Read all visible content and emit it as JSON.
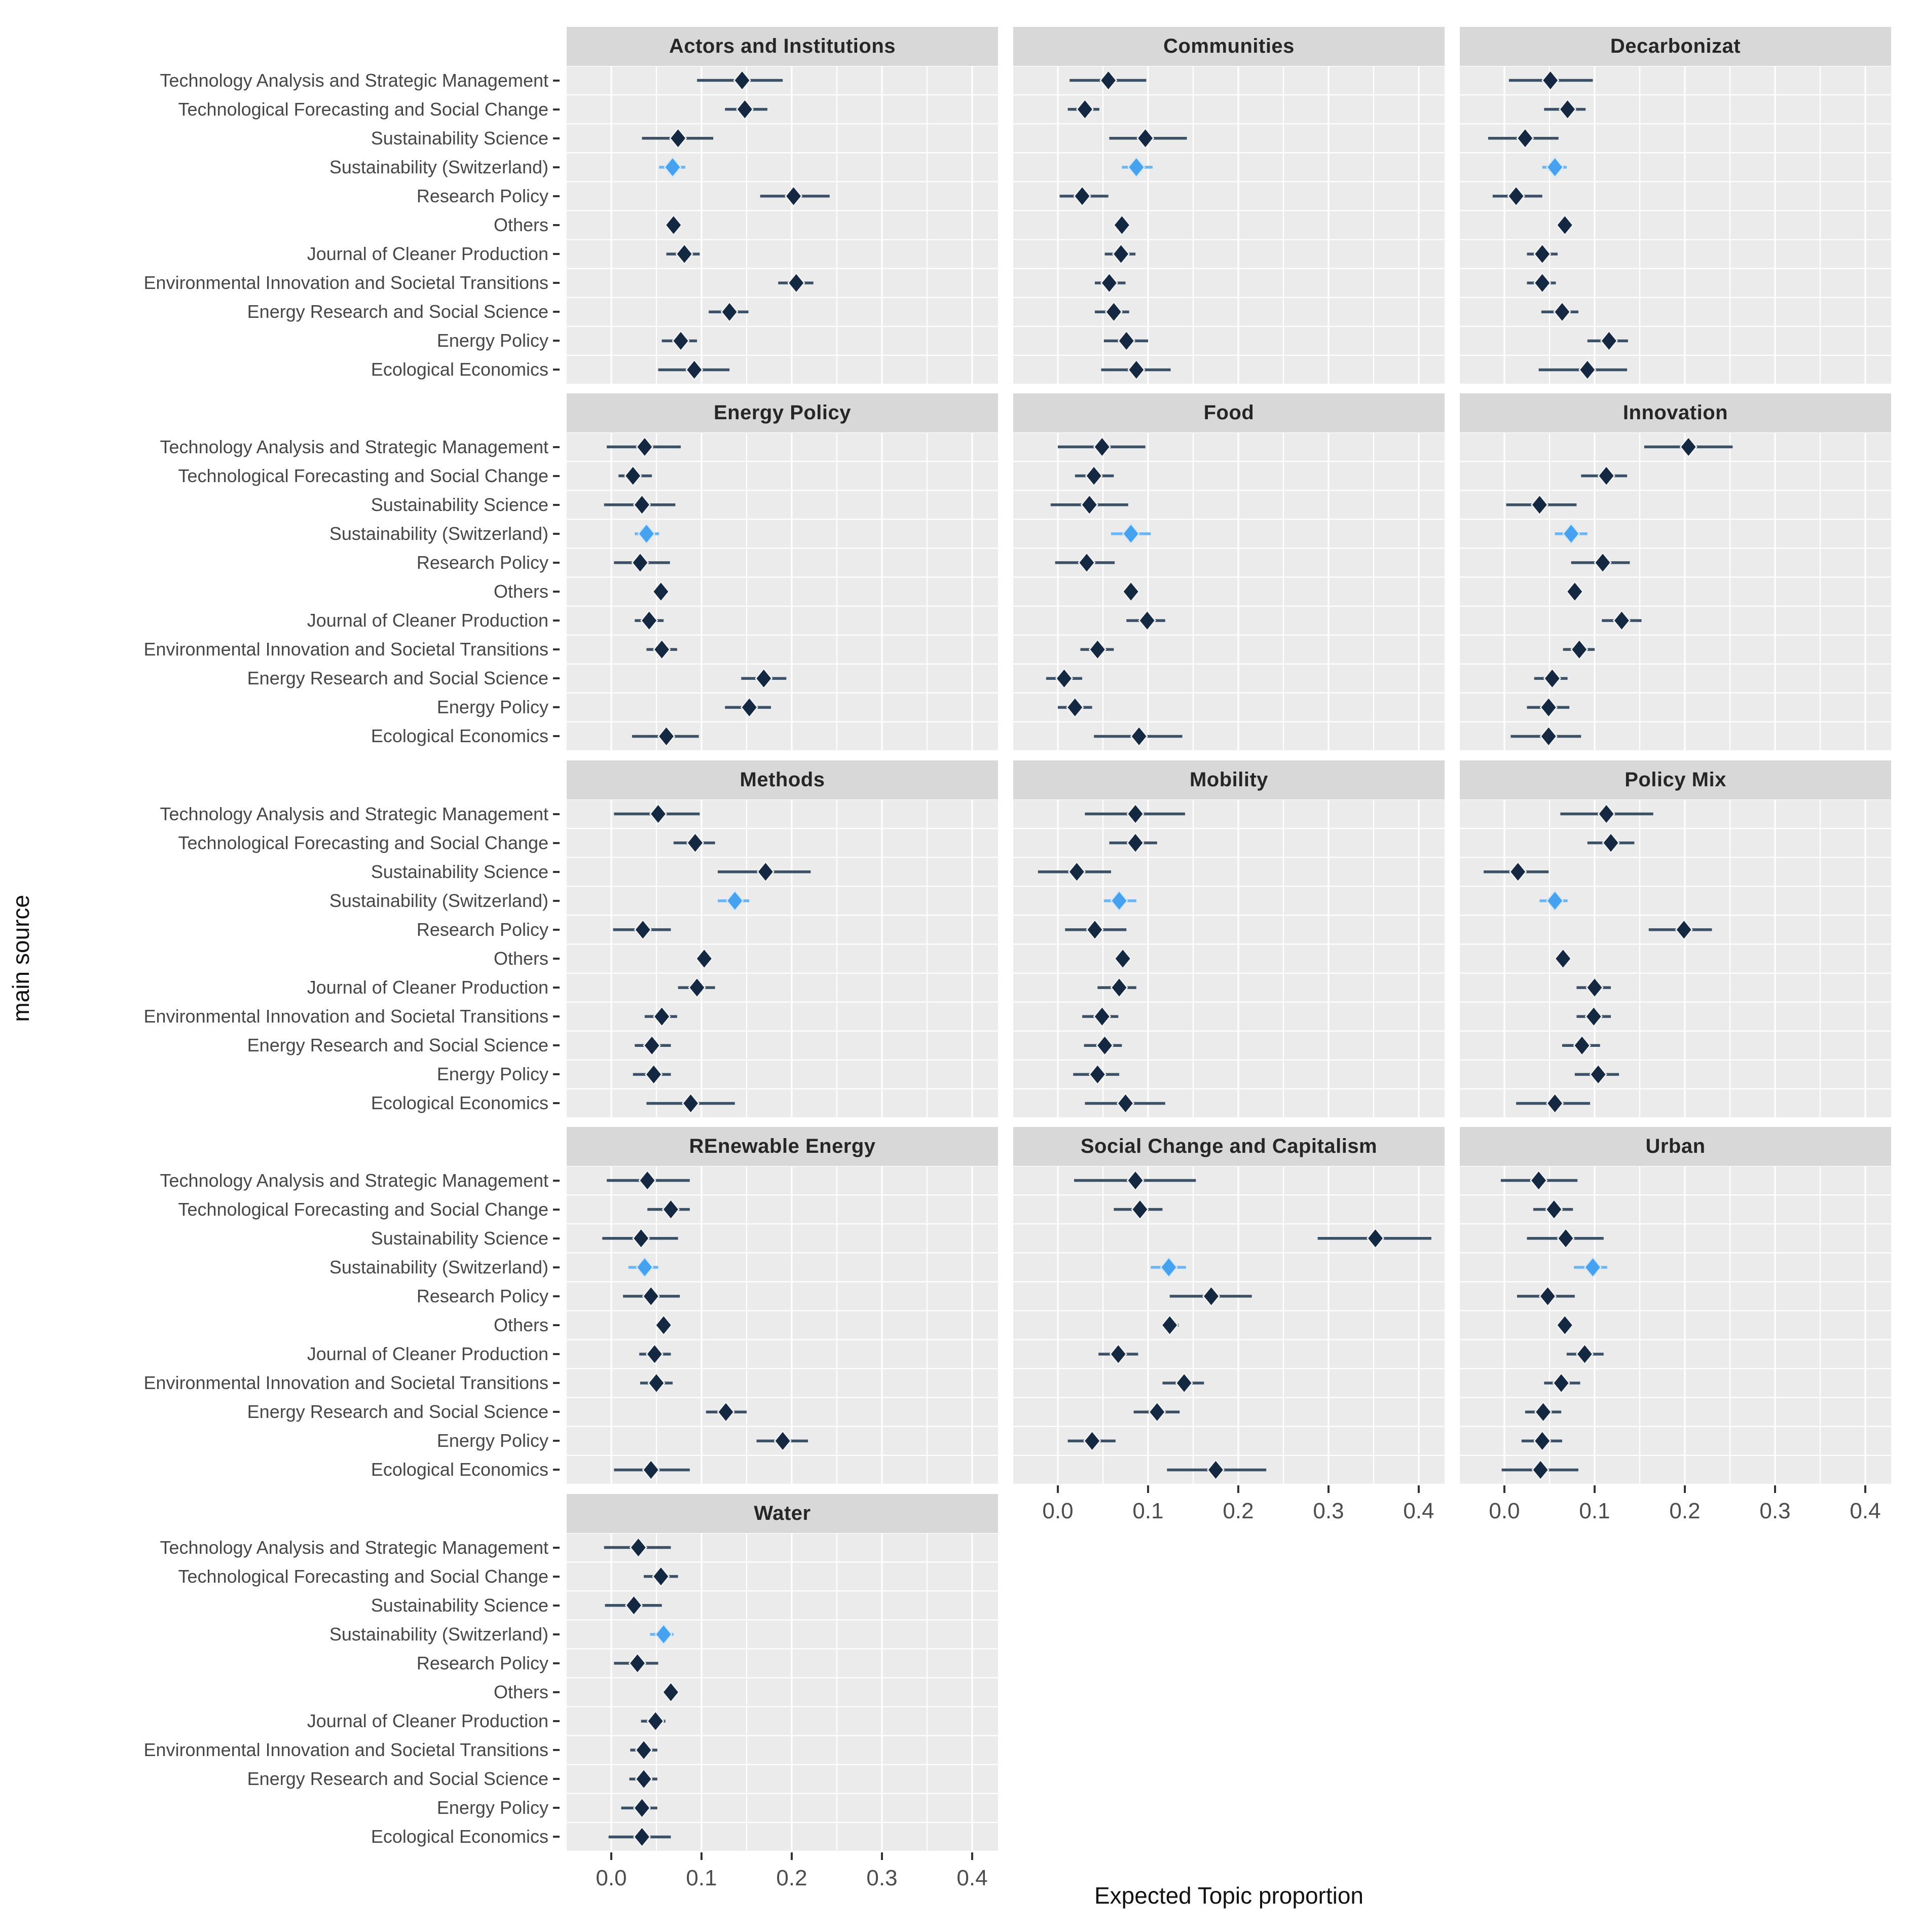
{
  "chart_data": {
    "type": "scatter",
    "subtype": "faceted-pointrange-dot-whisker",
    "title": "",
    "xlabel": "Expected Topic proportion",
    "ylabel": "main source",
    "x_ticks": [
      "0.0",
      "0.1",
      "0.2",
      "0.3",
      "0.4"
    ],
    "x_tick_values": [
      0.0,
      0.1,
      0.2,
      0.3,
      0.4
    ],
    "xlim": [
      -0.05,
      0.43
    ],
    "grid": "on",
    "legend_position": "none",
    "categories": [
      "Technology Analysis and Strategic Management",
      "Technological Forecasting and Social Change",
      "Sustainability Science",
      "Sustainability (Switzerland)",
      "Research Policy",
      "Others",
      "Journal of Cleaner Production",
      "Environmental Innovation and Societal Transitions",
      "Energy Research and Social Science",
      "Energy Policy",
      "Ecological Economics"
    ],
    "highlight_category": "Sustainability (Switzerland)",
    "colors": {
      "point": "#152841",
      "bar": "#3d5166",
      "highlight_point": "#46a1ee",
      "highlight_bar": "#6cb5f3",
      "halo": "#f2f2f2",
      "highlight_halo": "#d4e8fb",
      "panel_bg": "#ebebeb",
      "strip_bg": "#d8d8d8",
      "gridline": "#ffffff",
      "tick": "#333333",
      "tick_label": "#4d4d4d",
      "axis_title": "#111111"
    },
    "facets": [
      {
        "title": "Actors and Institutions",
        "values": [
          [
            0.145,
            0.095,
            0.19
          ],
          [
            0.148,
            0.126,
            0.173
          ],
          [
            0.074,
            0.034,
            0.113
          ],
          [
            0.068,
            0.053,
            0.082
          ],
          [
            0.202,
            0.165,
            0.242
          ],
          [
            0.069,
            0.063,
            0.077
          ],
          [
            0.081,
            0.061,
            0.098
          ],
          [
            0.205,
            0.185,
            0.224
          ],
          [
            0.131,
            0.108,
            0.152
          ],
          [
            0.077,
            0.056,
            0.095
          ],
          [
            0.092,
            0.052,
            0.131
          ]
        ]
      },
      {
        "title": "Communities",
        "values": [
          [
            0.056,
            0.013,
            0.098
          ],
          [
            0.03,
            0.011,
            0.046
          ],
          [
            0.097,
            0.057,
            0.143
          ],
          [
            0.087,
            0.071,
            0.105
          ],
          [
            0.027,
            0.002,
            0.056
          ],
          [
            0.071,
            0.065,
            0.078
          ],
          [
            0.07,
            0.052,
            0.086
          ],
          [
            0.057,
            0.041,
            0.075
          ],
          [
            0.062,
            0.041,
            0.079
          ],
          [
            0.076,
            0.051,
            0.1
          ],
          [
            0.087,
            0.048,
            0.125
          ]
        ]
      },
      {
        "title": "Decarbonizat",
        "values": [
          [
            0.051,
            0.005,
            0.098
          ],
          [
            0.07,
            0.044,
            0.09
          ],
          [
            0.023,
            -0.018,
            0.06
          ],
          [
            0.056,
            0.042,
            0.069
          ],
          [
            0.013,
            -0.013,
            0.042
          ],
          [
            0.067,
            0.06,
            0.072
          ],
          [
            0.042,
            0.025,
            0.059
          ],
          [
            0.042,
            0.025,
            0.057
          ],
          [
            0.064,
            0.041,
            0.082
          ],
          [
            0.116,
            0.092,
            0.137
          ],
          [
            0.092,
            0.038,
            0.136
          ]
        ]
      },
      {
        "title": "Energy Policy",
        "values": [
          [
            0.037,
            -0.005,
            0.077
          ],
          [
            0.024,
            0.008,
            0.045
          ],
          [
            0.034,
            -0.008,
            0.071
          ],
          [
            0.039,
            0.026,
            0.053
          ],
          [
            0.032,
            0.003,
            0.065
          ],
          [
            0.055,
            0.05,
            0.061
          ],
          [
            0.042,
            0.026,
            0.058
          ],
          [
            0.056,
            0.039,
            0.073
          ],
          [
            0.169,
            0.144,
            0.194
          ],
          [
            0.153,
            0.126,
            0.177
          ],
          [
            0.061,
            0.023,
            0.097
          ]
        ]
      },
      {
        "title": "Food",
        "values": [
          [
            0.049,
            0.0,
            0.097
          ],
          [
            0.04,
            0.019,
            0.062
          ],
          [
            0.035,
            -0.008,
            0.078
          ],
          [
            0.081,
            0.059,
            0.103
          ],
          [
            0.032,
            -0.003,
            0.063
          ],
          [
            0.081,
            0.073,
            0.089
          ],
          [
            0.099,
            0.076,
            0.119
          ],
          [
            0.044,
            0.025,
            0.062
          ],
          [
            0.007,
            -0.013,
            0.027
          ],
          [
            0.019,
            0.0,
            0.038
          ],
          [
            0.09,
            0.04,
            0.138
          ]
        ]
      },
      {
        "title": "Innovation",
        "values": [
          [
            0.204,
            0.155,
            0.253
          ],
          [
            0.113,
            0.085,
            0.136
          ],
          [
            0.039,
            0.002,
            0.08
          ],
          [
            0.074,
            0.056,
            0.092
          ],
          [
            0.109,
            0.074,
            0.139
          ],
          [
            0.078,
            0.072,
            0.085
          ],
          [
            0.13,
            0.108,
            0.152
          ],
          [
            0.083,
            0.065,
            0.1
          ],
          [
            0.053,
            0.033,
            0.07
          ],
          [
            0.049,
            0.025,
            0.072
          ],
          [
            0.049,
            0.007,
            0.085
          ]
        ]
      },
      {
        "title": "Methods",
        "values": [
          [
            0.052,
            0.003,
            0.098
          ],
          [
            0.093,
            0.069,
            0.115
          ],
          [
            0.171,
            0.118,
            0.221
          ],
          [
            0.137,
            0.118,
            0.153
          ],
          [
            0.035,
            0.002,
            0.066
          ],
          [
            0.103,
            0.097,
            0.11
          ],
          [
            0.095,
            0.074,
            0.115
          ],
          [
            0.056,
            0.037,
            0.073
          ],
          [
            0.045,
            0.026,
            0.066
          ],
          [
            0.047,
            0.024,
            0.066
          ],
          [
            0.088,
            0.039,
            0.137
          ]
        ]
      },
      {
        "title": "Mobility",
        "values": [
          [
            0.086,
            0.03,
            0.141
          ],
          [
            0.086,
            0.057,
            0.11
          ],
          [
            0.021,
            -0.022,
            0.059
          ],
          [
            0.068,
            0.051,
            0.087
          ],
          [
            0.041,
            0.008,
            0.076
          ],
          [
            0.072,
            0.065,
            0.079
          ],
          [
            0.068,
            0.044,
            0.087
          ],
          [
            0.049,
            0.027,
            0.067
          ],
          [
            0.052,
            0.029,
            0.071
          ],
          [
            0.044,
            0.017,
            0.068
          ],
          [
            0.075,
            0.03,
            0.119
          ]
        ]
      },
      {
        "title": "Policy Mix",
        "values": [
          [
            0.113,
            0.062,
            0.165
          ],
          [
            0.118,
            0.092,
            0.144
          ],
          [
            0.015,
            -0.023,
            0.049
          ],
          [
            0.056,
            0.039,
            0.07
          ],
          [
            0.199,
            0.16,
            0.23
          ],
          [
            0.065,
            0.059,
            0.07
          ],
          [
            0.1,
            0.08,
            0.118
          ],
          [
            0.099,
            0.08,
            0.118
          ],
          [
            0.086,
            0.064,
            0.106
          ],
          [
            0.104,
            0.078,
            0.127
          ],
          [
            0.056,
            0.013,
            0.095
          ]
        ]
      },
      {
        "title": "REnewable Energy",
        "values": [
          [
            0.04,
            -0.005,
            0.087
          ],
          [
            0.066,
            0.04,
            0.087
          ],
          [
            0.033,
            -0.01,
            0.074
          ],
          [
            0.037,
            0.019,
            0.052
          ],
          [
            0.044,
            0.013,
            0.076
          ],
          [
            0.058,
            0.052,
            0.064
          ],
          [
            0.048,
            0.031,
            0.066
          ],
          [
            0.05,
            0.032,
            0.068
          ],
          [
            0.127,
            0.105,
            0.15
          ],
          [
            0.19,
            0.161,
            0.218
          ],
          [
            0.044,
            0.003,
            0.087
          ]
        ]
      },
      {
        "title": "Social Change and Capitalism",
        "values": [
          [
            0.086,
            0.018,
            0.153
          ],
          [
            0.091,
            0.062,
            0.116
          ],
          [
            0.352,
            0.288,
            0.414
          ],
          [
            0.123,
            0.103,
            0.142
          ],
          [
            0.17,
            0.124,
            0.215
          ],
          [
            0.124,
            0.116,
            0.134
          ],
          [
            0.067,
            0.045,
            0.089
          ],
          [
            0.14,
            0.116,
            0.162
          ],
          [
            0.11,
            0.084,
            0.135
          ],
          [
            0.038,
            0.011,
            0.064
          ],
          [
            0.175,
            0.121,
            0.231
          ]
        ]
      },
      {
        "title": "Urban",
        "values": [
          [
            0.038,
            -0.004,
            0.081
          ],
          [
            0.055,
            0.032,
            0.076
          ],
          [
            0.068,
            0.025,
            0.11
          ],
          [
            0.098,
            0.077,
            0.114
          ],
          [
            0.048,
            0.014,
            0.078
          ],
          [
            0.067,
            0.061,
            0.073
          ],
          [
            0.089,
            0.069,
            0.11
          ],
          [
            0.063,
            0.044,
            0.084
          ],
          [
            0.043,
            0.023,
            0.063
          ],
          [
            0.042,
            0.019,
            0.064
          ],
          [
            0.04,
            -0.003,
            0.082
          ]
        ]
      },
      {
        "title": "Water",
        "values": [
          [
            0.03,
            -0.008,
            0.066
          ],
          [
            0.055,
            0.036,
            0.074
          ],
          [
            0.025,
            -0.007,
            0.056
          ],
          [
            0.058,
            0.043,
            0.069
          ],
          [
            0.029,
            0.003,
            0.052
          ],
          [
            0.066,
            0.061,
            0.072
          ],
          [
            0.049,
            0.033,
            0.06
          ],
          [
            0.036,
            0.021,
            0.051
          ],
          [
            0.036,
            0.02,
            0.051
          ],
          [
            0.034,
            0.011,
            0.051
          ],
          [
            0.034,
            -0.003,
            0.066
          ]
        ]
      }
    ]
  }
}
